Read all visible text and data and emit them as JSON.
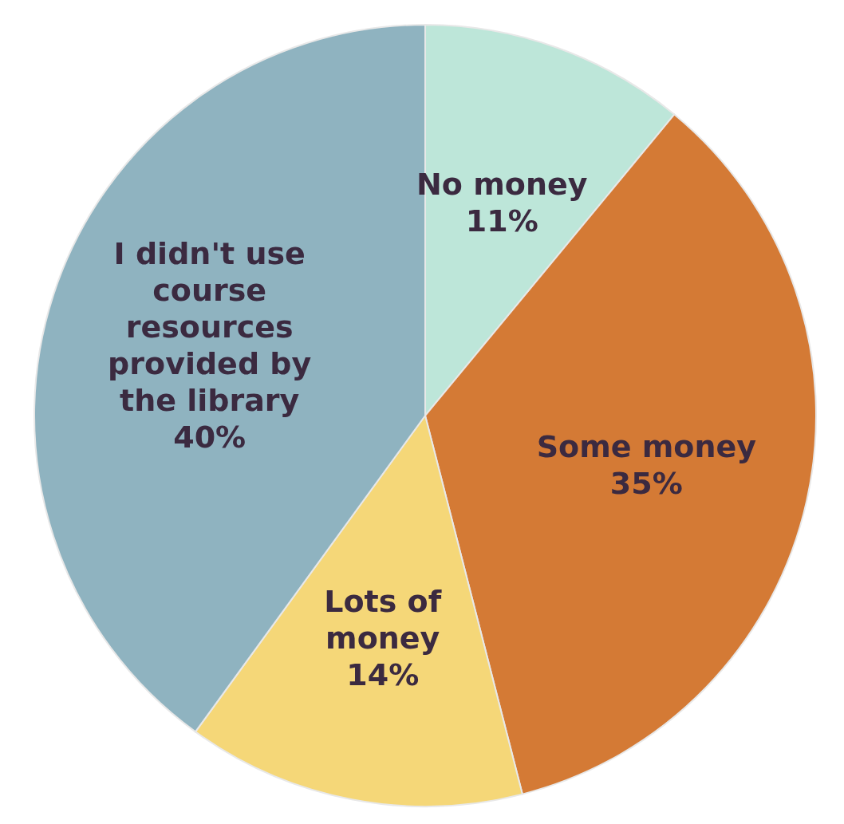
{
  "chart_data": {
    "type": "pie",
    "categories": [
      "No money",
      "Some money",
      "Lots of money",
      "I didn't use course resources provided by the library"
    ],
    "values": [
      11,
      35,
      14,
      40
    ],
    "value_labels": [
      "11%",
      "35%",
      "14%",
      "40%"
    ],
    "colors": [
      "#bde6d9",
      "#d47a35",
      "#f5d778",
      "#8fb3c0"
    ]
  }
}
